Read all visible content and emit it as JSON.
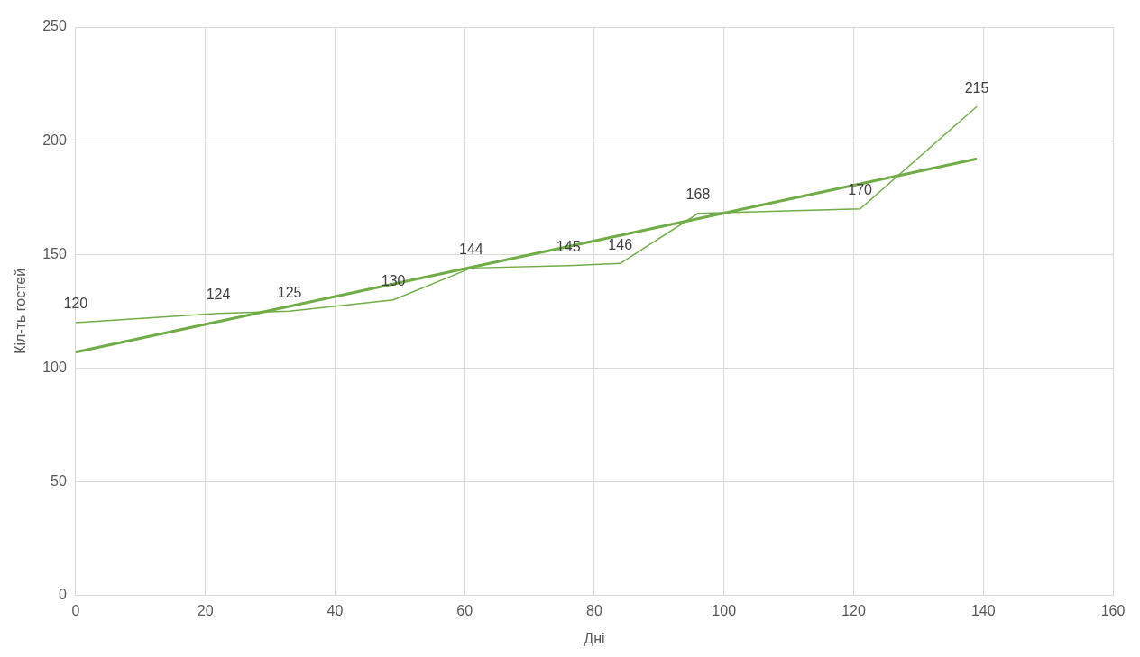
{
  "chart_data": {
    "type": "line",
    "x_label": "Дні",
    "y_label": "Кіл-ть гостей",
    "series": [
      {
        "color": "#70ad47",
        "type": "line",
        "line_style": "solid",
        "marker": "none",
        "data_labels": true,
        "x": [
          0,
          22,
          33,
          49,
          61,
          76,
          84,
          96,
          121,
          139
        ],
        "values": [
          120,
          124,
          125,
          130,
          144,
          145,
          146,
          168,
          170,
          215
        ]
      },
      {
        "color": "#70ad47",
        "type": "line",
        "line_style": "solid",
        "marker": "none",
        "data_labels": false,
        "x": [
          0,
          139
        ],
        "values": [
          107,
          192
        ]
      }
    ],
    "xlim": [
      0,
      160
    ],
    "xticks": [
      0,
      20,
      40,
      60,
      80,
      100,
      120,
      140,
      160
    ],
    "ylim": [
      0,
      250
    ],
    "yticks": [
      0,
      50,
      100,
      150,
      200,
      250
    ],
    "grid": true
  }
}
